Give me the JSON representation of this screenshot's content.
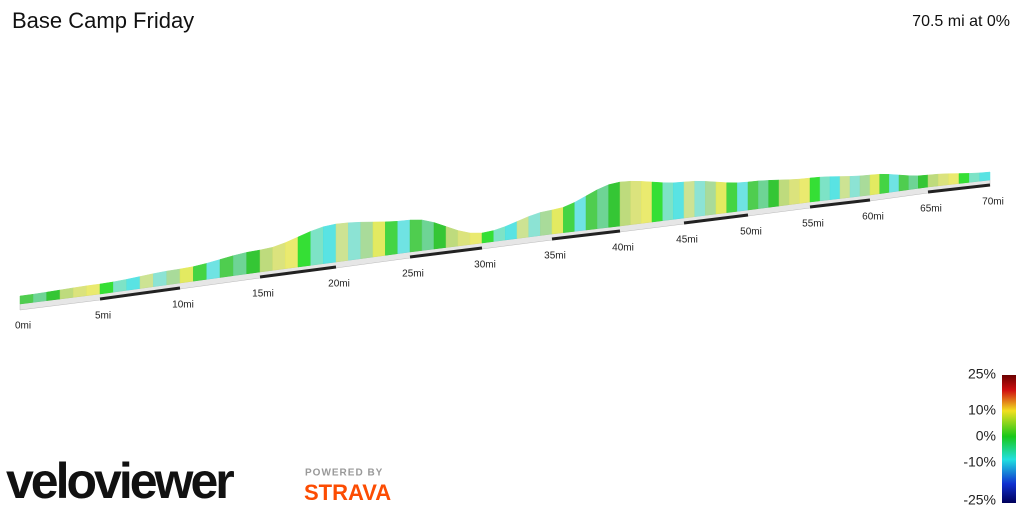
{
  "header": {
    "title": "Base Camp Friday",
    "summary": "70.5 mi at 0%"
  },
  "distance_labels": [
    "0mi",
    "5mi",
    "10mi",
    "15mi",
    "20mi",
    "25mi",
    "30mi",
    "35mi",
    "40mi",
    "45mi",
    "50mi",
    "55mi",
    "60mi",
    "65mi",
    "70mi"
  ],
  "legend": {
    "ticks": [
      "25%",
      "10%",
      "0%",
      "-10%",
      "-25%"
    ]
  },
  "branding": {
    "logo": "veloviewer",
    "powered_by": "POWERED BY",
    "partner": "STRAVA"
  }
}
